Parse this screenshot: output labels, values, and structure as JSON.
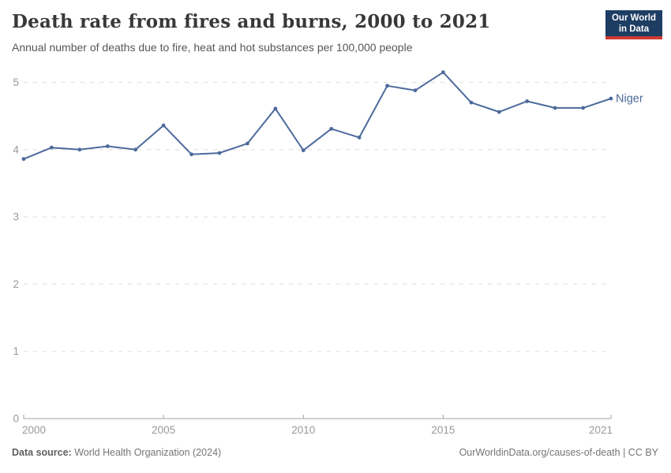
{
  "header": {
    "title": "Death rate from fires and burns, 2000 to 2021",
    "subtitle": "Annual number of deaths due to fire, heat and hot substances per 100,000 people"
  },
  "logo": {
    "line1": "Our World",
    "line2": "in Data",
    "bg_color": "#1d3d63",
    "accent_color": "#cf3a31"
  },
  "footer": {
    "source_label": "Data source:",
    "source_text": " World Health Organization (2024)",
    "credit": "OurWorldinData.org/causes-of-death | CC BY"
  },
  "chart_data": {
    "type": "line",
    "title": "Death rate from fires and burns, 2000 to 2021",
    "subtitle": "Annual number of deaths due to fire, heat and hot substances per 100,000 people",
    "x": [
      2000,
      2001,
      2002,
      2003,
      2004,
      2005,
      2006,
      2007,
      2008,
      2009,
      2010,
      2011,
      2012,
      2013,
      2014,
      2015,
      2016,
      2017,
      2018,
      2019,
      2020,
      2021
    ],
    "series": [
      {
        "name": "Niger",
        "color": "#4c6a9c",
        "values": [
          3.86,
          4.03,
          4.0,
          4.05,
          4.0,
          4.36,
          3.93,
          3.95,
          4.09,
          4.61,
          3.99,
          4.31,
          4.18,
          4.95,
          4.88,
          5.15,
          4.7,
          4.56,
          4.72,
          4.62,
          4.62,
          4.76
        ]
      }
    ],
    "xlabel": "",
    "ylabel": "",
    "ylim": [
      0,
      5.4
    ],
    "yticks": [
      0,
      1,
      2,
      3,
      4,
      5
    ],
    "xtick_labels": [
      2000,
      2005,
      2010,
      2015,
      2021
    ],
    "grid": "horizontal-dashed",
    "legend": "line-end-label",
    "axis_color": "#a3a3a3",
    "gridline_color": "#dedede",
    "tick_label_color": "#999999"
  }
}
